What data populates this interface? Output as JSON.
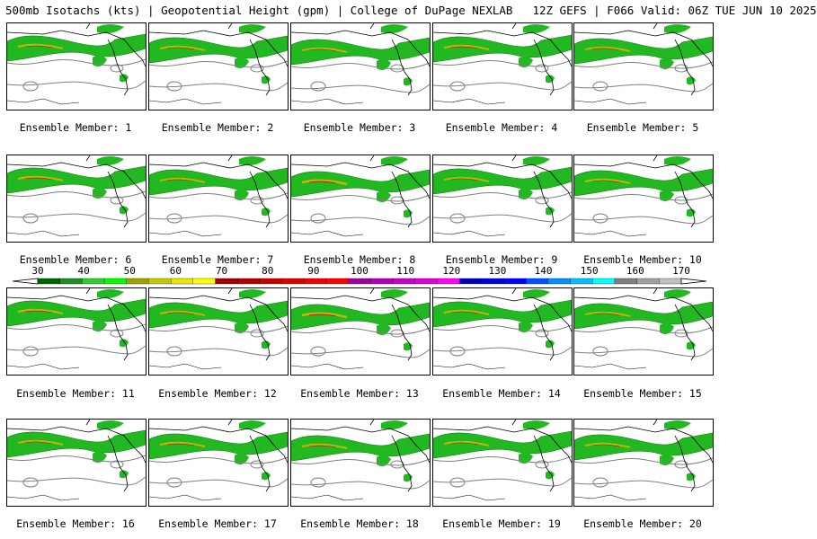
{
  "header": {
    "left": "500mb Isotachs (kts) | Geopotential Height (gpm) | College of DuPage NEXLAB",
    "right": "12Z GEFS | F066 Valid: 06Z TUE JUN 10 2025"
  },
  "members": [
    {
      "label": "Ensemble Member: 1",
      "jet_strength": 0.6
    },
    {
      "label": "Ensemble Member: 2",
      "jet_strength": 0.6
    },
    {
      "label": "Ensemble Member: 3",
      "jet_strength": 0.5
    },
    {
      "label": "Ensemble Member: 4",
      "jet_strength": 0.6
    },
    {
      "label": "Ensemble Member: 5",
      "jet_strength": 0.5
    },
    {
      "label": "Ensemble Member: 6",
      "jet_strength": 0.6
    },
    {
      "label": "Ensemble Member: 7",
      "jet_strength": 0.5
    },
    {
      "label": "Ensemble Member: 8",
      "jet_strength": 0.8
    },
    {
      "label": "Ensemble Member: 9",
      "jet_strength": 0.5
    },
    {
      "label": "Ensemble Member: 10",
      "jet_strength": 0.6
    },
    {
      "label": "Ensemble Member: 11",
      "jet_strength": 0.6
    },
    {
      "label": "Ensemble Member: 12",
      "jet_strength": 0.5
    },
    {
      "label": "Ensemble Member: 13",
      "jet_strength": 0.8
    },
    {
      "label": "Ensemble Member: 14",
      "jet_strength": 0.6
    },
    {
      "label": "Ensemble Member: 15",
      "jet_strength": 0.5
    },
    {
      "label": "Ensemble Member: 16",
      "jet_strength": 0.5
    },
    {
      "label": "Ensemble Member: 17",
      "jet_strength": 0.6
    },
    {
      "label": "Ensemble Member: 18",
      "jet_strength": 0.6
    },
    {
      "label": "Ensemble Member: 19",
      "jet_strength": 0.5
    },
    {
      "label": "Ensemble Member: 20",
      "jet_strength": 0.6
    }
  ],
  "colorbar": {
    "labels": [
      "30",
      "40",
      "50",
      "60",
      "70",
      "80",
      "90",
      "100",
      "110",
      "120",
      "130",
      "140",
      "150",
      "160",
      "170"
    ],
    "colors": [
      "#006400",
      "#1e8c1e",
      "#32cd32",
      "#00ff00",
      "#a0a000",
      "#c8c800",
      "#e8e800",
      "#ffff00",
      "#a00000",
      "#b40000",
      "#c80000",
      "#dc0000",
      "#f00000",
      "#ff0000",
      "#a000a0",
      "#b400b4",
      "#c800c8",
      "#dc00dc",
      "#ff00ff",
      "#0000b4",
      "#0000dc",
      "#0000ff",
      "#0050ff",
      "#0090ff",
      "#00c0ff",
      "#00ffff",
      "#808080",
      "#a0a0a0",
      "#c0c0c0"
    ]
  }
}
